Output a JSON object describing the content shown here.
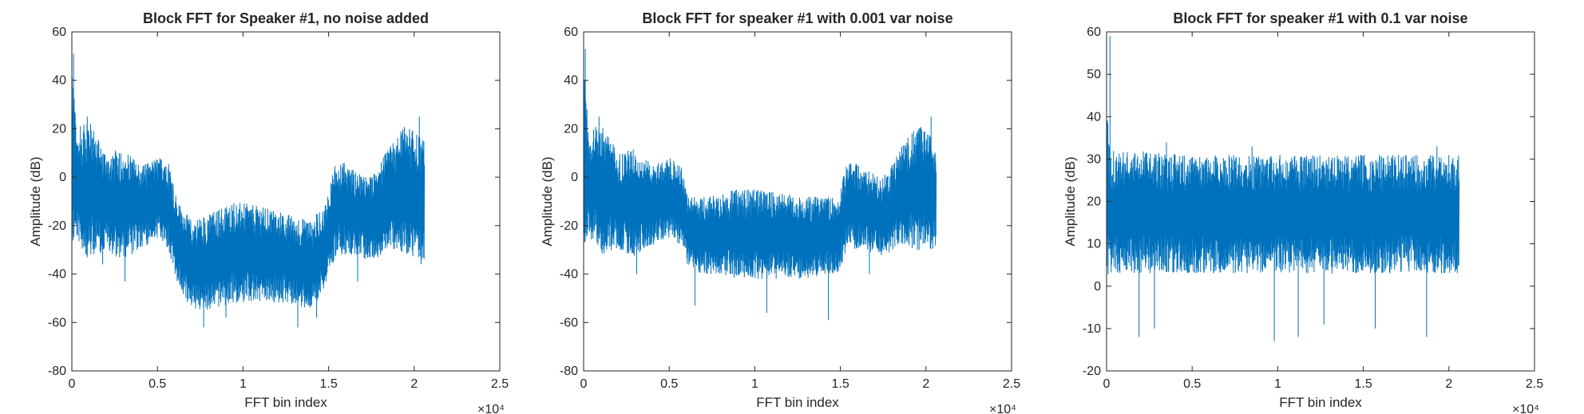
{
  "chart_data": [
    {
      "type": "line",
      "title": "Block FFT for Speaker #1, no noise added",
      "xlabel": "FFT bin index",
      "ylabel": "Amplitude (dB)",
      "xlim": [
        0,
        25000
      ],
      "ylim": [
        -80,
        60
      ],
      "xticks": [
        0,
        5000,
        10000,
        15000,
        20000,
        25000
      ],
      "xticklabels": [
        "0",
        "0.5",
        "1",
        "1.5",
        "2",
        "2.5"
      ],
      "yticks": [
        -80,
        -60,
        -40,
        -20,
        0,
        20,
        40,
        60
      ],
      "yticklabels": [
        "-80",
        "-60",
        "-40",
        "-20",
        "0",
        "20",
        "40",
        "60"
      ],
      "x_exponent_label": "×10⁴",
      "grid": false,
      "series": [
        {
          "color": "#0072BD",
          "x_max": 20600,
          "band": [
            {
              "x": 0,
              "low": -30,
              "high": 50
            },
            {
              "x": 300,
              "low": -25,
              "high": 15
            },
            {
              "x": 900,
              "low": -35,
              "high": 25
            },
            {
              "x": 2000,
              "low": -30,
              "high": 10
            },
            {
              "x": 3000,
              "low": -35,
              "high": 12
            },
            {
              "x": 4000,
              "low": -30,
              "high": 5
            },
            {
              "x": 5000,
              "low": -25,
              "high": 8
            },
            {
              "x": 5600,
              "low": -30,
              "high": 8
            },
            {
              "x": 6200,
              "low": -45,
              "high": -10
            },
            {
              "x": 7000,
              "low": -55,
              "high": -18
            },
            {
              "x": 8000,
              "low": -55,
              "high": -15
            },
            {
              "x": 9500,
              "low": -52,
              "high": -10
            },
            {
              "x": 11000,
              "low": -52,
              "high": -12
            },
            {
              "x": 12500,
              "low": -52,
              "high": -15
            },
            {
              "x": 14000,
              "low": -55,
              "high": -18
            },
            {
              "x": 14800,
              "low": -45,
              "high": -10
            },
            {
              "x": 15500,
              "low": -32,
              "high": 8
            },
            {
              "x": 16500,
              "low": -32,
              "high": 3
            },
            {
              "x": 17500,
              "low": -35,
              "high": 0
            },
            {
              "x": 18500,
              "low": -30,
              "high": 12
            },
            {
              "x": 19500,
              "low": -32,
              "high": 22
            },
            {
              "x": 20600,
              "low": -35,
              "high": 15
            }
          ],
          "spikes": [
            {
              "x": 100,
              "y": 51
            },
            {
              "x": 900,
              "y": 25
            },
            {
              "x": 500,
              "y": 21
            },
            {
              "x": 1800,
              "y": -36
            },
            {
              "x": 3100,
              "y": -43
            },
            {
              "x": 7700,
              "y": -62
            },
            {
              "x": 9000,
              "y": -58
            },
            {
              "x": 13200,
              "y": -62
            },
            {
              "x": 14300,
              "y": -58
            },
            {
              "x": 20300,
              "y": 25
            },
            {
              "x": 20400,
              "y": -36
            },
            {
              "x": 16700,
              "y": -43
            }
          ]
        }
      ]
    },
    {
      "type": "line",
      "title": "Block FFT for speaker #1 with 0.001 var noise",
      "xlabel": "FFT bin index",
      "ylabel": "Amplitude (dB)",
      "xlim": [
        0,
        25000
      ],
      "ylim": [
        -80,
        60
      ],
      "xticks": [
        0,
        5000,
        10000,
        15000,
        20000,
        25000
      ],
      "xticklabels": [
        "0",
        "0.5",
        "1",
        "1.5",
        "2",
        "2.5"
      ],
      "yticks": [
        -80,
        -60,
        -40,
        -20,
        0,
        20,
        40,
        60
      ],
      "yticklabels": [
        "-80",
        "-60",
        "-40",
        "-20",
        "0",
        "20",
        "40",
        "60"
      ],
      "x_exponent_label": "×10⁴",
      "grid": false,
      "series": [
        {
          "color": "#0072BD",
          "x_max": 20600,
          "band": [
            {
              "x": 0,
              "low": -28,
              "high": 52
            },
            {
              "x": 300,
              "low": -25,
              "high": 15
            },
            {
              "x": 900,
              "low": -32,
              "high": 25
            },
            {
              "x": 2000,
              "low": -30,
              "high": 10
            },
            {
              "x": 3000,
              "low": -33,
              "high": 12
            },
            {
              "x": 4000,
              "low": -28,
              "high": 5
            },
            {
              "x": 5000,
              "low": -25,
              "high": 8
            },
            {
              "x": 5700,
              "low": -28,
              "high": 5
            },
            {
              "x": 6100,
              "low": -38,
              "high": -8
            },
            {
              "x": 7000,
              "low": -40,
              "high": -8
            },
            {
              "x": 9000,
              "low": -42,
              "high": -5
            },
            {
              "x": 11000,
              "low": -42,
              "high": -5
            },
            {
              "x": 13000,
              "low": -42,
              "high": -8
            },
            {
              "x": 14800,
              "low": -40,
              "high": -8
            },
            {
              "x": 15500,
              "low": -30,
              "high": 8
            },
            {
              "x": 16500,
              "low": -30,
              "high": 3
            },
            {
              "x": 17500,
              "low": -33,
              "high": 0
            },
            {
              "x": 18500,
              "low": -28,
              "high": 12
            },
            {
              "x": 19500,
              "low": -30,
              "high": 22
            },
            {
              "x": 20600,
              "low": -30,
              "high": 15
            }
          ],
          "spikes": [
            {
              "x": 100,
              "y": 53
            },
            {
              "x": 900,
              "y": 25
            },
            {
              "x": 3100,
              "y": -40
            },
            {
              "x": 6500,
              "y": -53
            },
            {
              "x": 10700,
              "y": -56
            },
            {
              "x": 14300,
              "y": -59
            },
            {
              "x": 16700,
              "y": -40
            },
            {
              "x": 19600,
              "y": -30
            },
            {
              "x": 20300,
              "y": 25
            }
          ]
        }
      ]
    },
    {
      "type": "line",
      "title": "Block FFT for speaker #1 with 0.1 var noise",
      "xlabel": "FFT bin index",
      "ylabel": "Amplitude (dB)",
      "xlim": [
        0,
        25000
      ],
      "ylim": [
        -20,
        60
      ],
      "xticks": [
        0,
        5000,
        10000,
        15000,
        20000,
        25000
      ],
      "xticklabels": [
        "0",
        "0.5",
        "1",
        "1.5",
        "2",
        "2.5"
      ],
      "yticks": [
        -20,
        -10,
        0,
        10,
        20,
        30,
        40,
        50,
        60
      ],
      "yticklabels": [
        "-20",
        "-10",
        "0",
        "10",
        "20",
        "30",
        "40",
        "50",
        "60"
      ],
      "x_exponent_label": "×10⁴",
      "grid": false,
      "series": [
        {
          "color": "#0072BD",
          "x_max": 20600,
          "band": [
            {
              "x": 0,
              "low": 2,
              "high": 47
            },
            {
              "x": 200,
              "low": 3,
              "high": 32
            },
            {
              "x": 2000,
              "low": 3,
              "high": 32
            },
            {
              "x": 5000,
              "low": 3,
              "high": 31
            },
            {
              "x": 10000,
              "low": 3,
              "high": 31
            },
            {
              "x": 15000,
              "low": 3,
              "high": 31
            },
            {
              "x": 20600,
              "low": 3,
              "high": 31
            }
          ],
          "spikes": [
            {
              "x": 200,
              "y": 59
            },
            {
              "x": 1900,
              "y": -12
            },
            {
              "x": 2800,
              "y": -10
            },
            {
              "x": 9800,
              "y": -13
            },
            {
              "x": 11200,
              "y": -12
            },
            {
              "x": 12700,
              "y": -9
            },
            {
              "x": 15700,
              "y": -10
            },
            {
              "x": 18700,
              "y": -12
            },
            {
              "x": 3500,
              "y": 34
            },
            {
              "x": 8500,
              "y": 33
            },
            {
              "x": 19300,
              "y": 33
            }
          ]
        }
      ]
    }
  ]
}
